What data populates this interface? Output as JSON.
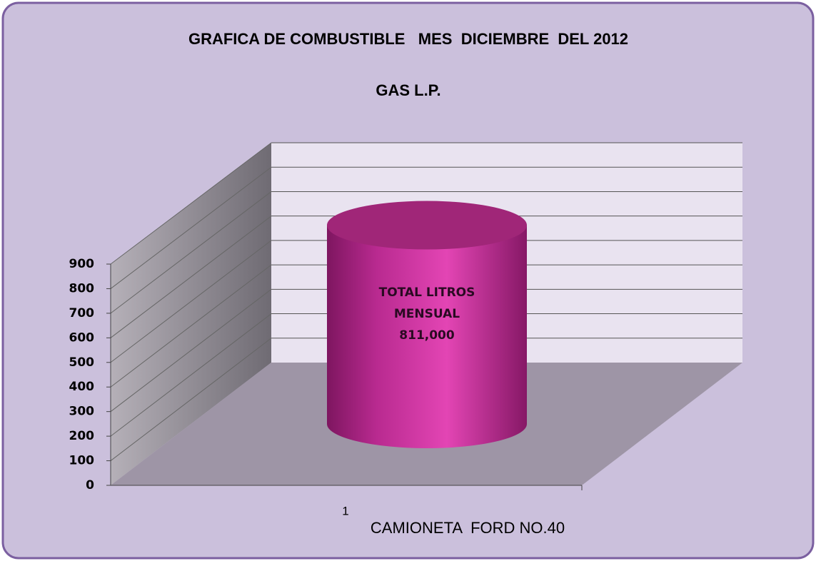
{
  "chart_data": {
    "type": "bar3d",
    "title": "GRAFICA DE COMBUSTIBLE   MES  DICIEMBRE  DEL 2012",
    "subtitle": "GAS L.P.",
    "categories": [
      "1"
    ],
    "x_label": "CAMIONETA  FORD NO.40",
    "series": [
      {
        "name": "TOTAL LITROS MENSUAL",
        "color": "#d23aa6",
        "values": [
          811
        ],
        "value_labels": [
          "811,000"
        ]
      }
    ],
    "ylim": [
      0,
      900
    ],
    "yticks": [
      0,
      100,
      200,
      300,
      400,
      500,
      600,
      700,
      800,
      900
    ],
    "grid": true
  }
}
